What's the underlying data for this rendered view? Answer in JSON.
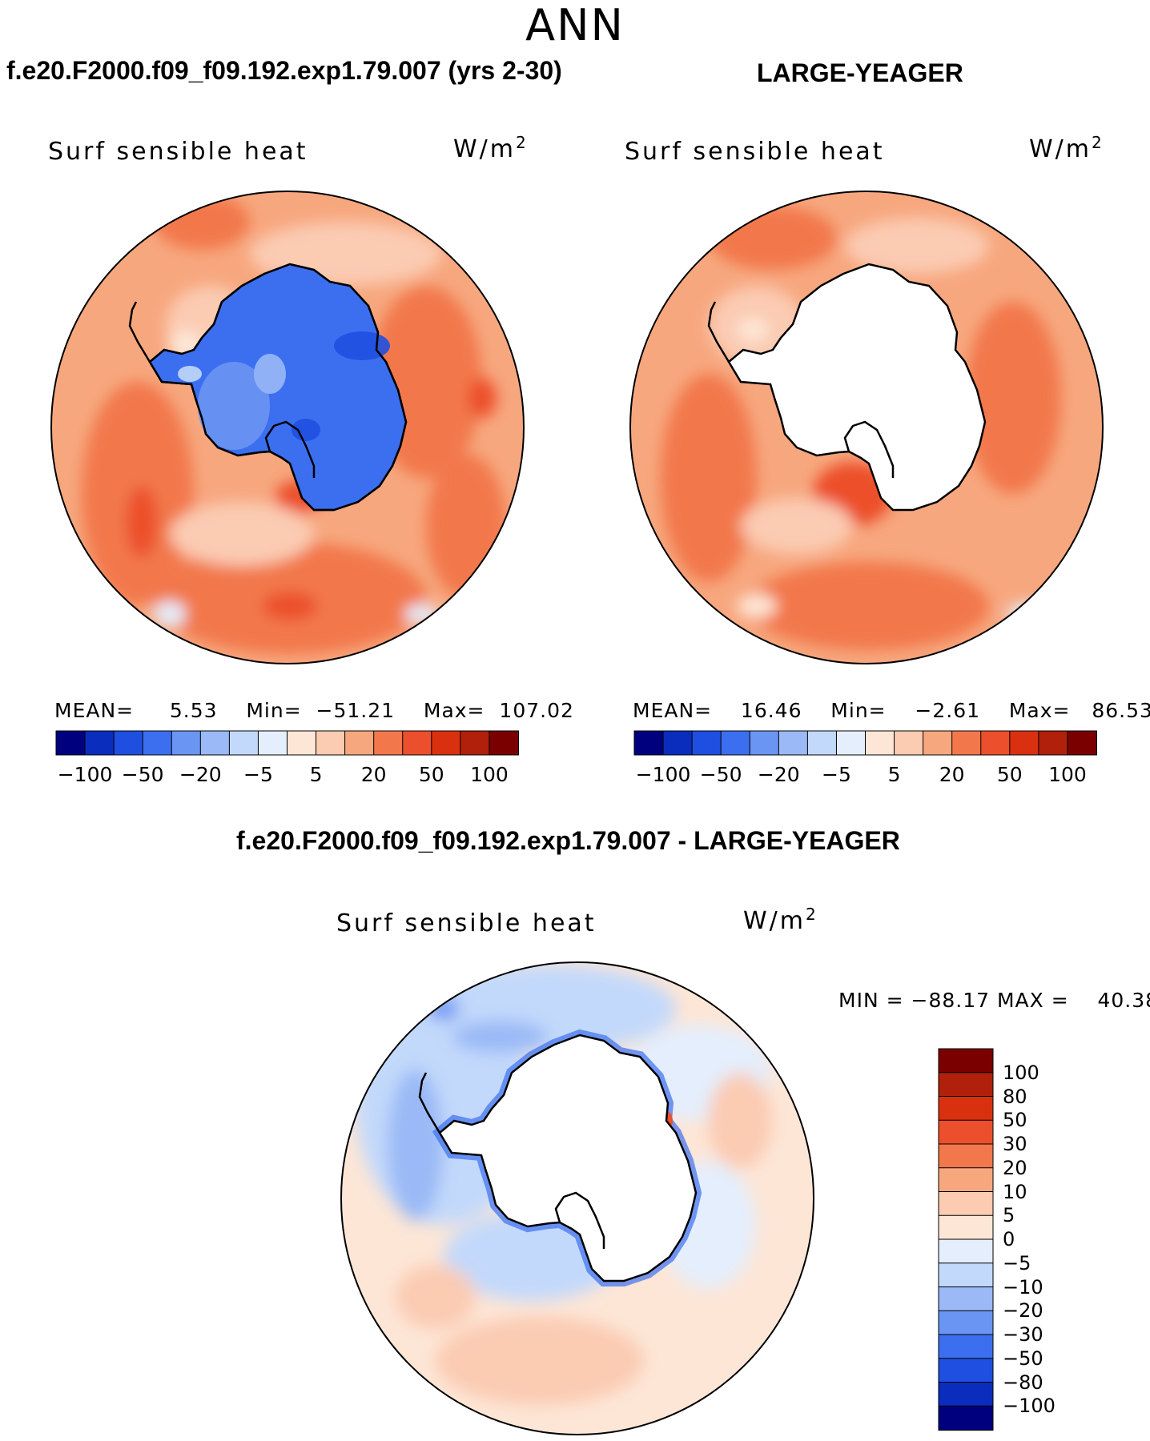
{
  "season": "ANN",
  "panels": [
    {
      "title": "f.e20.F2000.f09_f09.192.exp1.79.007 (yrs 2-30)",
      "variable": "Surf sensible heat",
      "units_base": "W/m",
      "units_exp": "2",
      "mean_label": "MEAN=",
      "mean": "5.53",
      "min_label": "Min=",
      "min": "−51.21",
      "max_label": "Max=",
      "max": "107.02",
      "antarctica": "cold"
    },
    {
      "title": "LARGE-YEAGER",
      "variable": "Surf sensible heat",
      "units_base": "W/m",
      "units_exp": "2",
      "mean_label": "MEAN=",
      "mean": "16.46",
      "min_label": "Min=",
      "min": "−2.61",
      "max_label": "Max=",
      "max": "86.53",
      "antarctica": "missing"
    }
  ],
  "colorbar_abs": {
    "colors": [
      "#00007f",
      "#0a2dbe",
      "#1f4fe0",
      "#3c6ff0",
      "#6b95f3",
      "#9ab9f6",
      "#c3d9fb",
      "#e4eefd",
      "#fde6d6",
      "#fbcbb2",
      "#f7a77e",
      "#f2784b",
      "#ec4f2c",
      "#d9310f",
      "#b0200b",
      "#7a0000"
    ],
    "ticks": [
      "−100",
      "−50",
      "−20",
      "−5",
      "5",
      "20",
      "50",
      "100"
    ]
  },
  "diff_panel": {
    "title": "f.e20.F2000.f09_f09.192.exp1.79.007 - LARGE-YEAGER",
    "variable": "Surf sensible heat",
    "units_base": "W/m",
    "units_exp": "2",
    "min_label": "MIN =",
    "min": "−88.17",
    "max_label": "MAX =",
    "max": "40.38"
  },
  "colorbar_diff": {
    "colors_top_to_bottom": [
      "#7a0000",
      "#b0200b",
      "#d9310f",
      "#ec4f2c",
      "#f2784b",
      "#f7a77e",
      "#fbcbb2",
      "#fde6d6",
      "#e4eefd",
      "#c3d9fb",
      "#9ab9f6",
      "#6b95f3",
      "#3c6ff0",
      "#1f4fe0",
      "#0a2dbe",
      "#00007f"
    ],
    "ticks": [
      "100",
      "80",
      "50",
      "30",
      "20",
      "10",
      "5",
      "0",
      "−5",
      "−10",
      "−20",
      "−30",
      "−50",
      "−80",
      "−100"
    ]
  }
}
